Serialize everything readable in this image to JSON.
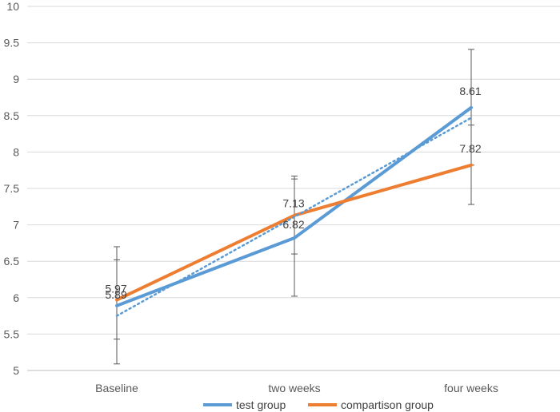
{
  "chart_data": {
    "type": "line",
    "categories": [
      "Baseline",
      "two weeks",
      "four weeks"
    ],
    "ylim": [
      5,
      10
    ],
    "yticks": [
      "5",
      "5.5",
      "6",
      "6.5",
      "7",
      "7.5",
      "8",
      "8.5",
      "9",
      "9.5",
      "10"
    ],
    "grid": "horizontal",
    "legend_position": "bottom",
    "series": [
      {
        "name": "test group",
        "color": "#5B9BD5",
        "values": [
          5.89,
          6.82,
          8.61
        ],
        "value_labels": [
          "5.89",
          "6.82",
          "8.61"
        ],
        "error_low": [
          5.43,
          6.02,
          7.82
        ],
        "error_high": [
          6.52,
          7.63,
          9.41
        ]
      },
      {
        "name": "compartison group",
        "color": "#ED7D31",
        "values": [
          5.97,
          7.13,
          7.82
        ],
        "value_labels": [
          "5.97",
          "7.13",
          "7.82"
        ],
        "error_low": [
          5.09,
          6.6,
          7.28
        ],
        "error_high": [
          6.7,
          7.67,
          8.37
        ]
      }
    ],
    "trendline": {
      "series": "test group",
      "style": "dotted",
      "color": "#5B9BD5",
      "values": [
        5.75,
        7.11,
        8.47
      ]
    }
  }
}
